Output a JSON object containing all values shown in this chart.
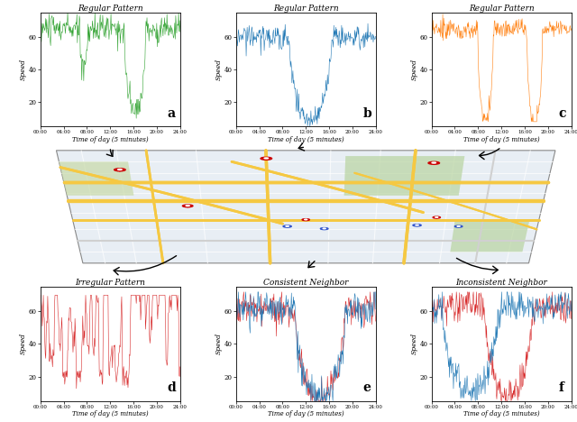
{
  "subplots": [
    {
      "label": "a",
      "title": "Regular Pattern",
      "color": "#2ca02c",
      "ylabel": "Speed"
    },
    {
      "label": "b",
      "title": "Regular Pattern",
      "color": "#1f77b4",
      "ylabel": "Speed"
    },
    {
      "label": "c",
      "title": "Regular Pattern",
      "color": "#ff7f0e",
      "ylabel": "Speed"
    },
    {
      "label": "d",
      "title": "Irregular Pattern",
      "color": "#d62728",
      "ylabel": "Speed"
    },
    {
      "label": "e",
      "title": "Consistent Neighbor",
      "color_1": "#d62728",
      "color_2": "#1f77b4",
      "ylabel": "Speed"
    },
    {
      "label": "f",
      "title": "Inconsistent Neighbor",
      "color_1": "#d62728",
      "color_2": "#1f77b4",
      "ylabel": "Speed"
    }
  ],
  "xtick_labels": [
    "00:00",
    "04:00",
    "08:00",
    "12:00",
    "16:00",
    "20:00",
    "24:00"
  ],
  "xlabel": "Time of day (5 minutes)",
  "ylim": [
    5,
    75
  ],
  "yticks": [
    20,
    40,
    60
  ],
  "n_points": 288,
  "background_color": "white"
}
